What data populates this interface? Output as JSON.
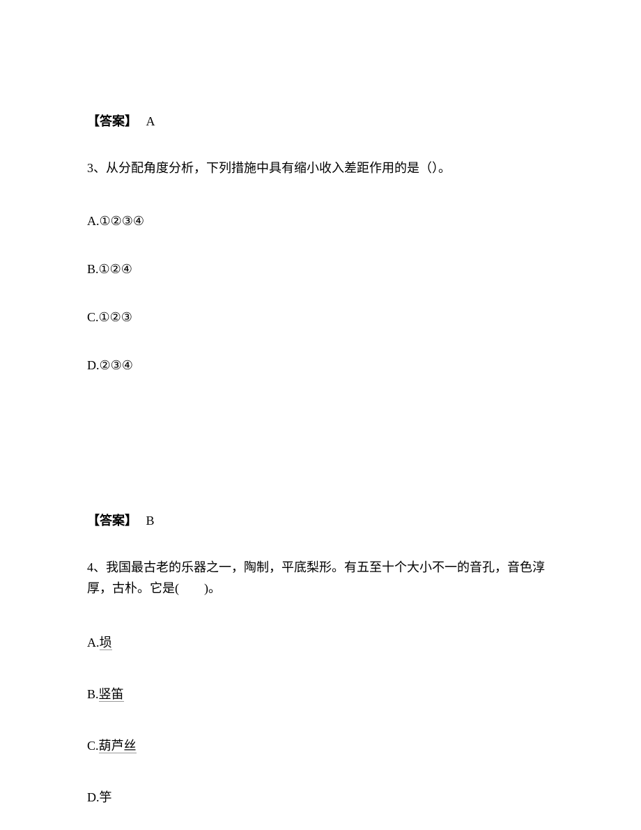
{
  "answer1": {
    "label": "【答案】",
    "value": "A"
  },
  "q3": {
    "number": "3、",
    "text": "从分配角度分析，下列措施中具有缩小收入差距作用的是（）。",
    "optionA": "A.①②③④",
    "optionB": "B.①②④",
    "optionC": "C.①②③",
    "optionD": "D.②③④"
  },
  "answer2": {
    "label": "【答案】",
    "value": "B"
  },
  "q4": {
    "number": "4、",
    "text1": "我国最古老的乐器之一，陶制，平底梨形。有五至十个大小不一的音孔，音色淳厚，古朴。它是(　　)。",
    "optionA_prefix": "A.",
    "optionA_text": "埙",
    "optionB_prefix": "B.",
    "optionB_text": "竖笛",
    "optionC_prefix": "C.",
    "optionC_text": "葫芦丝",
    "optionD_prefix": "D.",
    "optionD_text": "竽"
  }
}
